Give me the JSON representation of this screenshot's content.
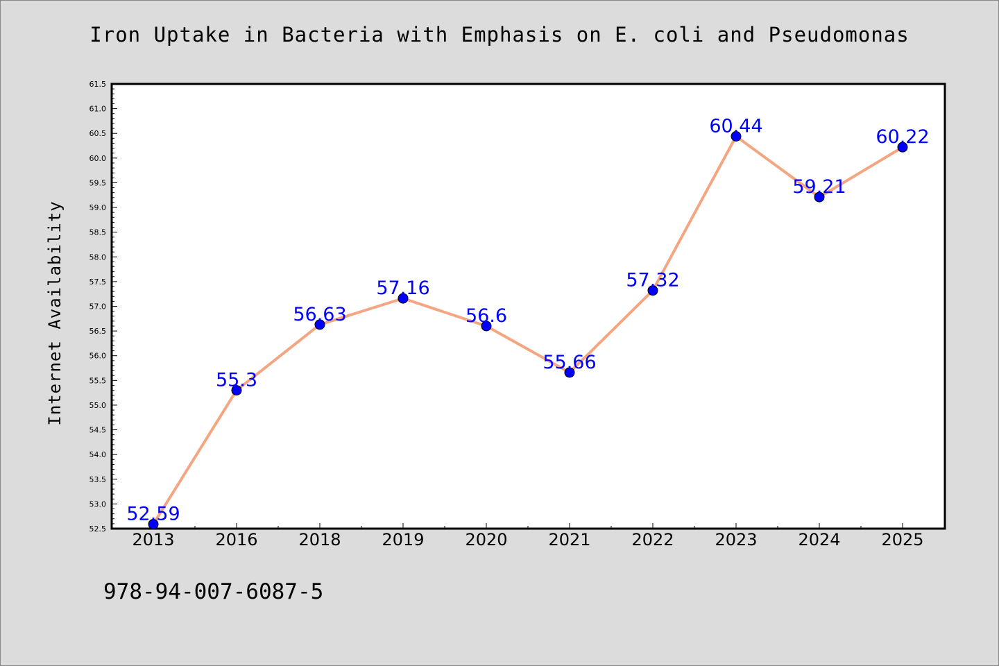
{
  "chart_data": {
    "type": "line",
    "title": "Iron Uptake in Bacteria with Emphasis on E. coli and Pseudomonas",
    "xlabel": "",
    "ylabel": "Internet Availability",
    "categories": [
      "2013",
      "2016",
      "2018",
      "2019",
      "2020",
      "2021",
      "2022",
      "2023",
      "2024",
      "2025"
    ],
    "series": [
      {
        "values": [
          52.59,
          55.3,
          56.63,
          57.16,
          56.6,
          55.66,
          57.32,
          60.44,
          59.21,
          60.22
        ],
        "labels": [
          "52.59",
          "55.3",
          "56.63",
          "57.16",
          "56.6",
          "55.66",
          "57.32",
          "60.44",
          "59.21",
          "60.22"
        ]
      }
    ],
    "ylim": [
      52.5,
      61.5
    ],
    "yticks": [
      "52.5",
      "53.0",
      "53.5",
      "54.0",
      "54.5",
      "55.0",
      "55.5",
      "56.0",
      "56.5",
      "57.0",
      "57.5",
      "58.0",
      "58.5",
      "59.0",
      "59.5",
      "60.0",
      "60.5",
      "61.0",
      "61.5"
    ],
    "grid": false,
    "legend": "none"
  },
  "footnote": "978-94-007-6087-5",
  "colors": {
    "figure_background": "#dcdcdc",
    "plot_background": "#ffffff",
    "line": "#f4a582",
    "marker": "#0000ff",
    "point_label": "#0000ff",
    "axes": "#000000"
  }
}
